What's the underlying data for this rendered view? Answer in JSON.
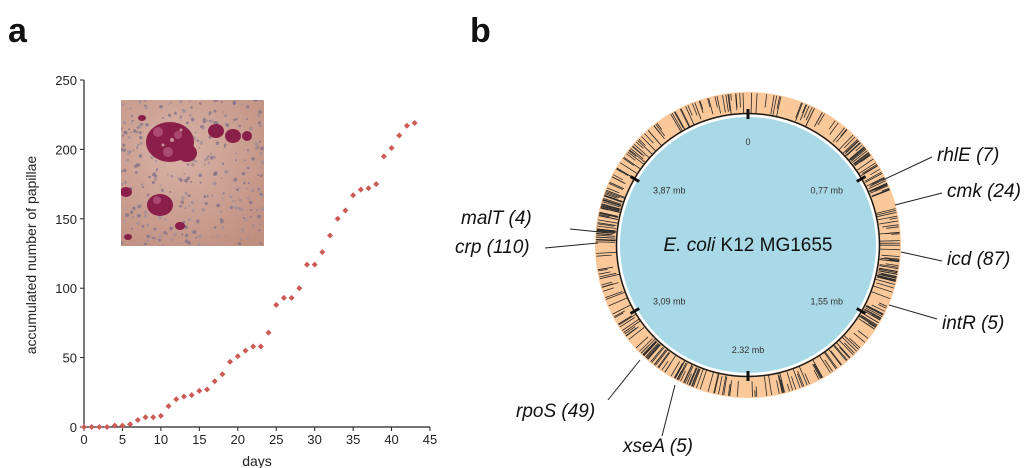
{
  "panels": {
    "a": "a",
    "b": "b"
  },
  "colors": {
    "marker": "#cc5b55",
    "ring": "#fbc89a",
    "disc": "#a9d9e7",
    "plate_bg": "#c99a8c",
    "colony": "#8a1f4a"
  },
  "chart_data": [
    {
      "type": "scatter",
      "title": "",
      "xlabel": "days",
      "ylabel": "accumulated number of papillae",
      "xlim": [
        0,
        45
      ],
      "ylim": [
        0,
        250
      ],
      "xticks": [
        0,
        5,
        10,
        15,
        20,
        25,
        30,
        35,
        40,
        45
      ],
      "yticks": [
        0,
        50,
        100,
        150,
        200,
        250
      ],
      "grid": false,
      "legend": "none",
      "inset": "photo of colonies with dark red papillae",
      "x": [
        0,
        1,
        2,
        3,
        4,
        5,
        6,
        7,
        8,
        9,
        10,
        11,
        12,
        13,
        14,
        15,
        16,
        17,
        18,
        19,
        20,
        21,
        22,
        23,
        24,
        25,
        26,
        27,
        28,
        29,
        30,
        31,
        32,
        33,
        34,
        35,
        36,
        37,
        38,
        39,
        40,
        41,
        42,
        43
      ],
      "y": [
        0,
        0,
        0,
        0,
        1,
        1,
        2,
        5,
        7,
        7,
        8,
        15,
        20,
        22,
        23,
        26,
        27,
        33,
        38,
        47,
        51,
        55,
        58,
        58,
        68,
        88,
        93,
        93,
        100,
        117,
        117,
        126,
        138,
        150,
        156,
        167,
        171,
        172,
        175,
        195,
        201,
        210,
        217,
        219
      ]
    },
    {
      "type": "circular-genome-map",
      "center_label_italic": "E. coli",
      "center_label_rest": " K12 MG1655",
      "scale_labels": [
        {
          "label": "0",
          "mb": 0
        },
        {
          "label": "0,77 mb",
          "mb": 0.77
        },
        {
          "label": "1,55 mb",
          "mb": 1.55
        },
        {
          "label": "2.32 mb",
          "mb": 2.32
        },
        {
          "label": "3,09 mb",
          "mb": 3.09
        },
        {
          "label": "3,87 mb",
          "mb": 3.87
        }
      ],
      "genes": [
        {
          "name": "rhlE",
          "count": "(7)"
        },
        {
          "name": "cmk",
          "count": "(24)"
        },
        {
          "name": "icd",
          "count": "(87)"
        },
        {
          "name": "intR",
          "count": "(5)"
        },
        {
          "name": "xseA",
          "count": "(5)"
        },
        {
          "name": "rpoS",
          "count": "(49)"
        },
        {
          "name": "crp",
          "count": "(110)"
        },
        {
          "name": "malT",
          "count": "(4)"
        }
      ]
    }
  ]
}
